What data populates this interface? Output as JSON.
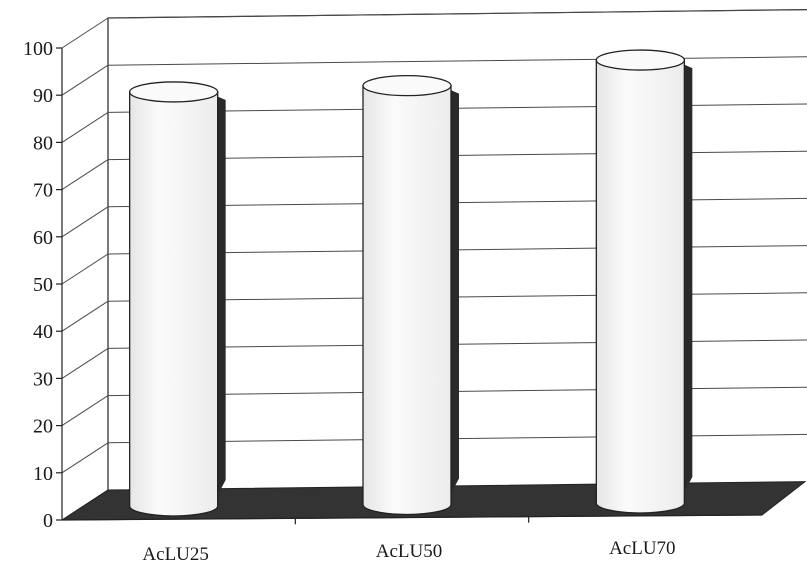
{
  "chart_data": {
    "type": "bar",
    "style": "3d-cylinder",
    "categories": [
      "AcLU25",
      "AcLU50",
      "AcLU70"
    ],
    "values": [
      86,
      87,
      92
    ],
    "title": "",
    "xlabel": "",
    "ylabel": "",
    "ylim": [
      0,
      100
    ],
    "yticks": [
      "0",
      "10",
      "20",
      "30",
      "40",
      "50",
      "60",
      "70",
      "80",
      "90",
      "100"
    ],
    "grid": true,
    "legend": "none",
    "colors": {
      "cylinder_face": "#f4f4f4",
      "cylinder_shadow": "#2a2a2a",
      "floor": "#333333",
      "gridline": "#4a4a4a",
      "axis": "#222222"
    }
  }
}
